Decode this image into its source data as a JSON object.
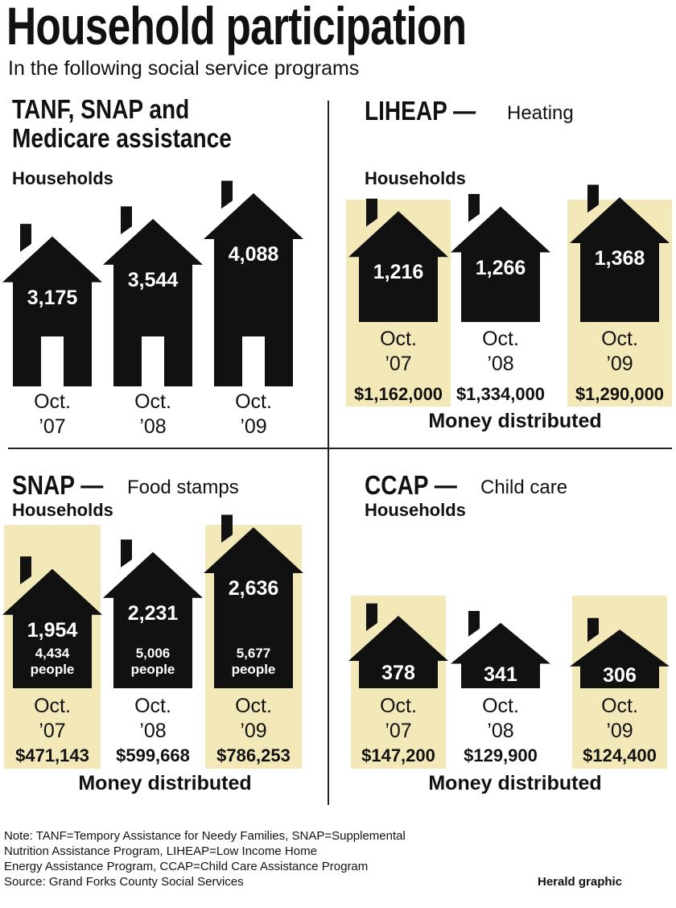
{
  "header": {
    "title": "Household participation",
    "subtitle": "In the following social service programs"
  },
  "chart_data": [
    {
      "type": "house",
      "title": "TANF, SNAP and Medicare assistance",
      "door": true,
      "categories": [
        "Oct. ’07",
        "Oct. ’08",
        "Oct. ’09"
      ],
      "series": [
        {
          "name": "Households",
          "color": "#111111",
          "values": [
            3175,
            3544,
            4088
          ],
          "value_labels": [
            "3,175",
            "3,544",
            "4,088"
          ]
        }
      ]
    },
    {
      "type": "house",
      "title": "LIHEAP —",
      "subtitle": "Heating",
      "door": false,
      "highlight": [
        true,
        false,
        true
      ],
      "highlight_color": "#f3e9b8",
      "categories": [
        "Oct. ’07",
        "Oct. ’08",
        "Oct. ’09"
      ],
      "series": [
        {
          "name": "Households",
          "color": "#111111",
          "values": [
            1216,
            1266,
            1368
          ],
          "value_labels": [
            "1,216",
            "1,266",
            "1,368"
          ]
        }
      ],
      "money": {
        "name": "Money distributed",
        "values": [
          1162000,
          1334000,
          1290000
        ],
        "value_labels": [
          "$1,162,000",
          "$1,334,000",
          "$1,290,000"
        ]
      }
    },
    {
      "type": "house",
      "title": "SNAP —",
      "subtitle": "Food stamps",
      "door": false,
      "highlight": [
        true,
        false,
        true
      ],
      "highlight_color": "#f3e9b8",
      "categories": [
        "Oct. ’07",
        "Oct. ’08",
        "Oct. ’09"
      ],
      "series": [
        {
          "name": "Households",
          "color": "#111111",
          "values": [
            1954,
            2231,
            2636
          ],
          "value_labels": [
            "1,954",
            "2,231",
            "2,636"
          ]
        },
        {
          "name": "people",
          "values": [
            4434,
            5006,
            5677
          ],
          "value_labels": [
            "4,434",
            "5,006",
            "5,677"
          ]
        }
      ],
      "money": {
        "name": "Money distributed",
        "values": [
          471143,
          599668,
          786253
        ],
        "value_labels": [
          "$471,143",
          "$599,668",
          "$786,253"
        ]
      }
    },
    {
      "type": "house",
      "title": "CCAP —",
      "subtitle": "Child care",
      "door": false,
      "highlight": [
        true,
        false,
        true
      ],
      "highlight_color": "#f3e9b8",
      "categories": [
        "Oct. ’07",
        "Oct. ’08",
        "Oct. ’09"
      ],
      "series": [
        {
          "name": "Households",
          "color": "#111111",
          "values": [
            378,
            341,
            306
          ],
          "value_labels": [
            "378",
            "341",
            "306"
          ]
        }
      ],
      "money": {
        "name": "Money distributed",
        "values": [
          147200,
          129900,
          124400
        ],
        "value_labels": [
          "$147,200",
          "$129,900",
          "$124,400"
        ]
      }
    }
  ],
  "footer": {
    "notes": [
      "Note: TANF=Tempory Assistance for Needy Families, SNAP=Supplemental",
      "Nutrition  Assistance Program, LIHEAP=Low Income Home",
      "Energy Assistance Program, CCAP=Child Care Assistance Program",
      "Source: Grand Forks County Social Services"
    ],
    "credit": "Herald graphic"
  }
}
